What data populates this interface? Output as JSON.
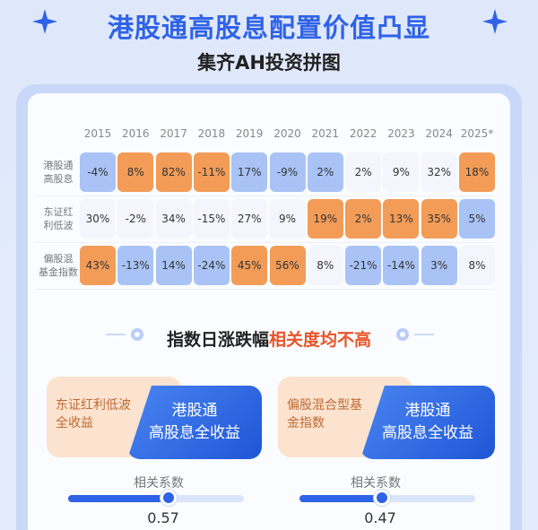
{
  "header": {
    "title": "港股通高股息配置价值凸显",
    "subtitle": "集齐AH投资拼图"
  },
  "table": {
    "years": [
      "2015",
      "2016",
      "2017",
      "2018",
      "2019",
      "2020",
      "2021",
      "2022",
      "2023",
      "2024",
      "2025*"
    ],
    "rows": [
      {
        "label_l1": "港股通",
        "label_l2": "高股息",
        "values": [
          "-4%",
          "8%",
          "82%",
          "-11%",
          "17%",
          "-9%",
          "2%",
          "2%",
          "9%",
          "32%",
          "18%"
        ],
        "styles": [
          "b",
          "o",
          "o",
          "o",
          "b",
          "b",
          "b",
          "n",
          "n",
          "n",
          "o"
        ]
      },
      {
        "label_l1": "东证红",
        "label_l2": "利低波",
        "values": [
          "30%",
          "-2%",
          "34%",
          "-15%",
          "27%",
          "9%",
          "19%",
          "2%",
          "13%",
          "35%",
          "5%"
        ],
        "styles": [
          "n",
          "n",
          "n",
          "n",
          "n",
          "n",
          "o",
          "o",
          "o",
          "o",
          "b"
        ]
      },
      {
        "label_l1": "偏股混",
        "label_l2": "基金指数",
        "values": [
          "43%",
          "-13%",
          "14%",
          "-24%",
          "45%",
          "56%",
          "8%",
          "-21%",
          "-14%",
          "3%",
          "8%"
        ],
        "styles": [
          "o",
          "b",
          "b",
          "b",
          "o",
          "o",
          "n",
          "b",
          "b",
          "b",
          "n"
        ]
      }
    ]
  },
  "section": {
    "title_plain": "指数日涨跌幅",
    "title_highlight": "相关度均不高"
  },
  "comparisons": [
    {
      "left_l1": "东证红利低波",
      "left_l2": "全收益",
      "right_l1": "港股通",
      "right_l2": "高股息全收益",
      "coef_label": "相关系数",
      "coef_value": "0.57",
      "coef_fraction": 0.57
    },
    {
      "left_l1": "偏股混合型基",
      "left_l2": "金指数",
      "right_l1": "港股通",
      "right_l2": "高股息全收益",
      "coef_label": "相关系数",
      "coef_value": "0.47",
      "coef_fraction": 0.47
    }
  ],
  "colors": {
    "accent_blue": "#2f62e6",
    "cell_orange": "#f29c58",
    "cell_blue": "#a9c3f6",
    "highlight_red": "#e8552a"
  }
}
